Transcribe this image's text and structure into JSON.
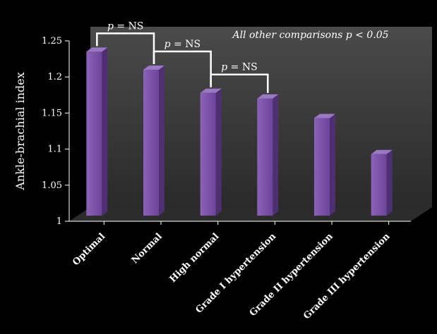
{
  "chart_data": {
    "type": "bar",
    "categories": [
      "Optimal",
      "Normal",
      "High normal",
      "Grade I hypertension",
      "Grade II hypertension",
      "Grade III hypertension"
    ],
    "values": [
      1.235,
      1.21,
      1.178,
      1.17,
      1.143,
      1.093
    ],
    "ylabel": "Ankle-brachial index",
    "ylim": [
      1,
      1.25
    ],
    "yticks": [
      "1",
      "1.05",
      "1.1",
      "1.15",
      "1.2",
      "1.25"
    ],
    "ytick_values": [
      1,
      1.05,
      1.1,
      1.15,
      1.2,
      1.25
    ],
    "bar_color": "#7b52a8",
    "annotations": {
      "note": "All other comparisons p < 0.05",
      "brackets": [
        {
          "from": 0,
          "to": 1,
          "p_letter": "p",
          "p_rest": " = NS"
        },
        {
          "from": 1,
          "to": 2,
          "p_letter": "p",
          "p_rest": " = NS"
        },
        {
          "from": 2,
          "to": 3,
          "p_letter": "p",
          "p_rest": " = NS"
        }
      ]
    }
  }
}
